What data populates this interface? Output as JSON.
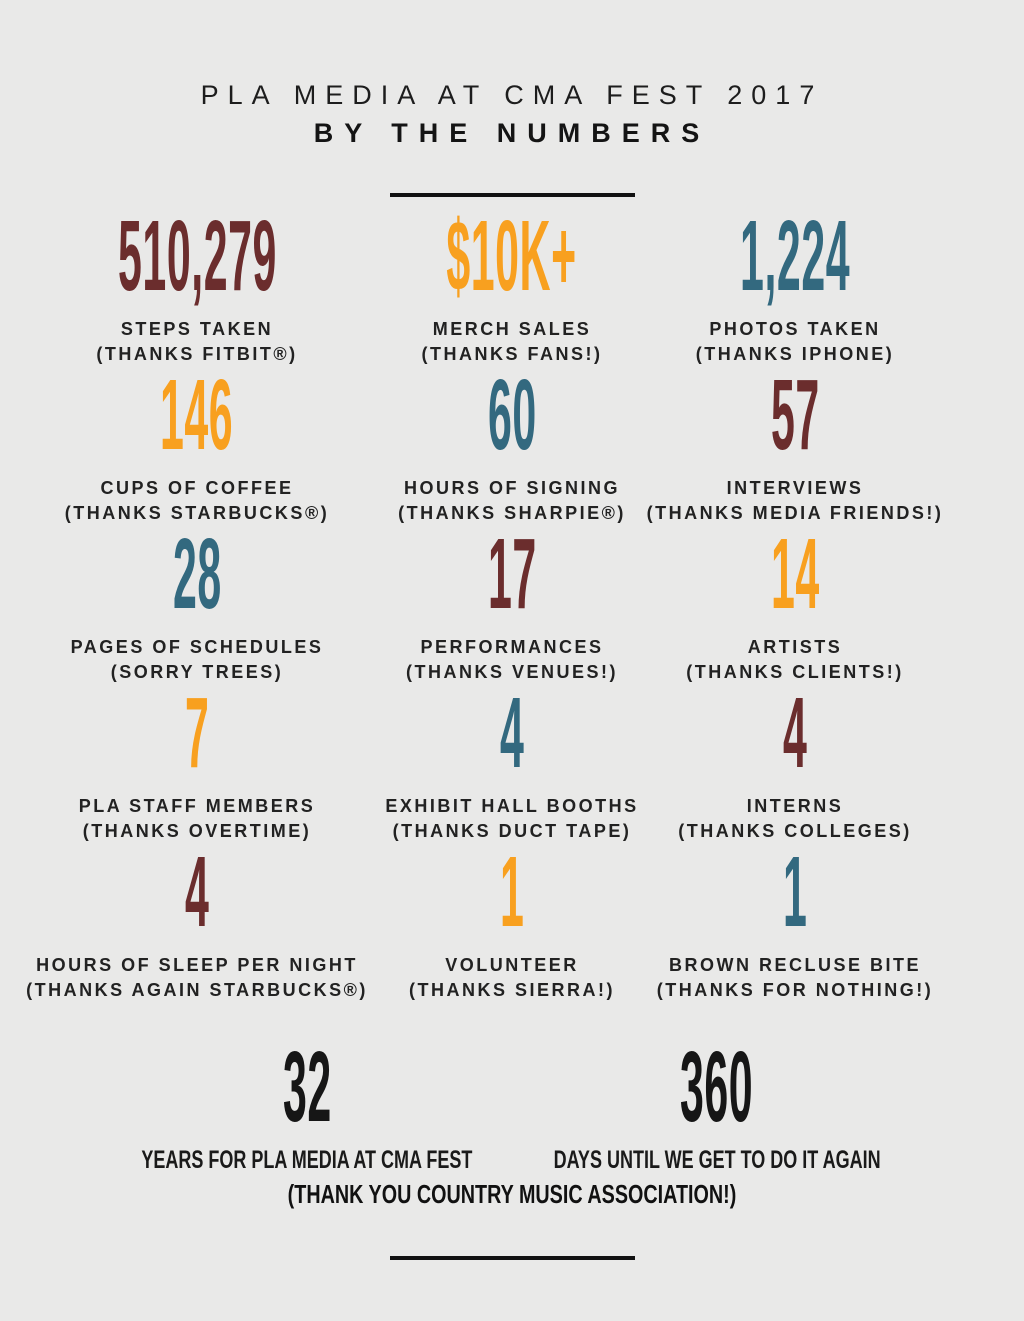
{
  "header": {
    "title_line1": "PLA MEDIA AT CMA FEST 2017",
    "title_line2": "BY THE NUMBERS"
  },
  "palette": {
    "maroon": "#6B2D2D",
    "orange": "#F8A01F",
    "teal": "#33697F",
    "black": "#161616",
    "label_text": "#222222",
    "background": "#E9E9E8",
    "divider": "#111111"
  },
  "stats": [
    {
      "value": "510,279",
      "color": "maroon",
      "label": "STEPS TAKEN",
      "note": "(THANKS FITBIT®)"
    },
    {
      "value": "$10K+",
      "color": "orange",
      "label": "MERCH SALES",
      "note": "(THANKS FANS!)"
    },
    {
      "value": "1,224",
      "color": "teal",
      "label": "PHOTOS TAKEN",
      "note": "(THANKS IPHONE)"
    },
    {
      "value": "146",
      "color": "orange",
      "label": "CUPS OF COFFEE",
      "note": "(THANKS STARBUCKS®)"
    },
    {
      "value": "60",
      "color": "teal",
      "label": "HOURS OF SIGNING",
      "note": "(THANKS SHARPIE®)"
    },
    {
      "value": "57",
      "color": "maroon",
      "label": "INTERVIEWS",
      "note": "(THANKS MEDIA FRIENDS!)"
    },
    {
      "value": "28",
      "color": "teal",
      "label": "PAGES OF SCHEDULES",
      "note": "(SORRY TREES)"
    },
    {
      "value": "17",
      "color": "maroon",
      "label": "PERFORMANCES",
      "note": "(THANKS VENUES!)"
    },
    {
      "value": "14",
      "color": "orange",
      "label": "ARTISTS",
      "note": "(THANKS CLIENTS!)"
    },
    {
      "value": "7",
      "color": "orange",
      "label": "PLA STAFF MEMBERS",
      "note": "(THANKS OVERTIME)"
    },
    {
      "value": "4",
      "color": "teal",
      "label": "EXHIBIT HALL BOOTHS",
      "note": "(THANKS DUCT TAPE)"
    },
    {
      "value": "4",
      "color": "maroon",
      "label": "INTERNS",
      "note": "(THANKS COLLEGES)"
    },
    {
      "value": "4",
      "color": "maroon",
      "label": "HOURS OF SLEEP PER NIGHT",
      "note": "(THANKS AGAIN STARBUCKS®)"
    },
    {
      "value": "1",
      "color": "orange",
      "label": "VOLUNTEER",
      "note": "(THANKS SIERRA!)"
    },
    {
      "value": "1",
      "color": "teal",
      "label": "BROWN RECLUSE BITE",
      "note": "(THANKS FOR NOTHING!)"
    }
  ],
  "bottom_stats": [
    {
      "value": "32",
      "color": "black",
      "label": "YEARS FOR PLA MEDIA AT CMA FEST"
    },
    {
      "value": "360",
      "color": "black",
      "label": "DAYS UNTIL WE GET TO DO IT AGAIN"
    }
  ],
  "footer": {
    "thanks": "(THANK YOU COUNTRY MUSIC ASSOCIATION!)"
  },
  "chart_data": {
    "type": "table",
    "title": "PLA MEDIA AT CMA FEST 2017 — BY THE NUMBERS",
    "items": [
      {
        "metric": "STEPS TAKEN (THANKS FITBIT®)",
        "value": 510279,
        "display": "510,279",
        "color": "#6B2D2D"
      },
      {
        "metric": "MERCH SALES (THANKS FANS!)",
        "value": 10000,
        "display": "$10K+",
        "color": "#F8A01F"
      },
      {
        "metric": "PHOTOS TAKEN (THANKS IPHONE)",
        "value": 1224,
        "display": "1,224",
        "color": "#33697F"
      },
      {
        "metric": "CUPS OF COFFEE (THANKS STARBUCKS®)",
        "value": 146,
        "display": "146",
        "color": "#F8A01F"
      },
      {
        "metric": "HOURS OF SIGNING (THANKS SHARPIE®)",
        "value": 60,
        "display": "60",
        "color": "#33697F"
      },
      {
        "metric": "INTERVIEWS (THANKS MEDIA FRIENDS!)",
        "value": 57,
        "display": "57",
        "color": "#6B2D2D"
      },
      {
        "metric": "PAGES OF SCHEDULES (SORRY TREES)",
        "value": 28,
        "display": "28",
        "color": "#33697F"
      },
      {
        "metric": "PERFORMANCES (THANKS VENUES!)",
        "value": 17,
        "display": "17",
        "color": "#6B2D2D"
      },
      {
        "metric": "ARTISTS (THANKS CLIENTS!)",
        "value": 14,
        "display": "14",
        "color": "#F8A01F"
      },
      {
        "metric": "PLA STAFF MEMBERS (THANKS OVERTIME)",
        "value": 7,
        "display": "7",
        "color": "#F8A01F"
      },
      {
        "metric": "EXHIBIT HALL BOOTHS (THANKS DUCT TAPE)",
        "value": 4,
        "display": "4",
        "color": "#33697F"
      },
      {
        "metric": "INTERNS (THANKS COLLEGES)",
        "value": 4,
        "display": "4",
        "color": "#6B2D2D"
      },
      {
        "metric": "HOURS OF SLEEP PER NIGHT (THANKS AGAIN STARBUCKS®)",
        "value": 4,
        "display": "4",
        "color": "#6B2D2D"
      },
      {
        "metric": "VOLUNTEER (THANKS SIERRA!)",
        "value": 1,
        "display": "1",
        "color": "#F8A01F"
      },
      {
        "metric": "BROWN RECLUSE BITE (THANKS FOR NOTHING!)",
        "value": 1,
        "display": "1",
        "color": "#33697F"
      },
      {
        "metric": "YEARS FOR PLA MEDIA AT CMA FEST",
        "value": 32,
        "display": "32",
        "color": "#161616"
      },
      {
        "metric": "DAYS UNTIL WE GET TO DO IT AGAIN",
        "value": 360,
        "display": "360",
        "color": "#161616"
      }
    ]
  }
}
